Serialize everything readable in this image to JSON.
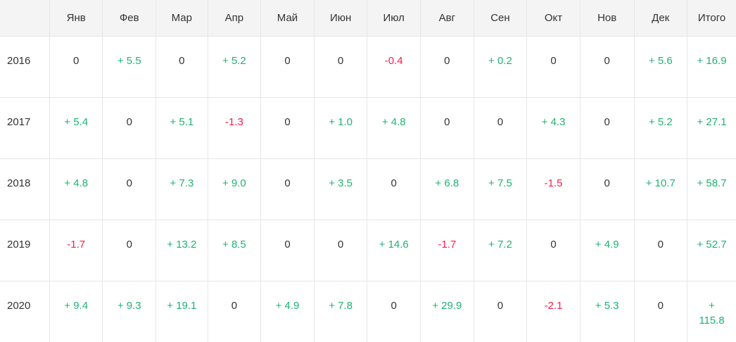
{
  "colors": {
    "positive": "#1fb371",
    "negative": "#ff1a4b",
    "neutral": "#333333",
    "header_background": "#f4f4f4",
    "grid_line": "#e6e6e6"
  },
  "table": {
    "corner": "",
    "columns": [
      "Янв",
      "Фев",
      "Мар",
      "Апр",
      "Май",
      "Июн",
      "Июл",
      "Авг",
      "Сен",
      "Окт",
      "Нов",
      "Дек",
      "Итого"
    ],
    "rows": [
      {
        "year": "2016",
        "values": [
          "0",
          "+ 5.5",
          "0",
          "+ 5.2",
          "0",
          "0",
          "-0.4",
          "0",
          "+ 0.2",
          "0",
          "0",
          "+ 5.6",
          "+ 16.9"
        ]
      },
      {
        "year": "2017",
        "values": [
          "+ 5.4",
          "0",
          "+ 5.1",
          "-1.3",
          "0",
          "+ 1.0",
          "+ 4.8",
          "0",
          "0",
          "+ 4.3",
          "0",
          "+ 5.2",
          "+ 27.1"
        ]
      },
      {
        "year": "2018",
        "values": [
          "+ 4.8",
          "0",
          "+ 7.3",
          "+ 9.0",
          "0",
          "+ 3.5",
          "0",
          "+ 6.8",
          "+ 7.5",
          "-1.5",
          "0",
          "+ 10.7",
          "+ 58.7"
        ]
      },
      {
        "year": "2019",
        "values": [
          "-1.7",
          "0",
          "+ 13.2",
          "+ 8.5",
          "0",
          "0",
          "+ 14.6",
          "-1.7",
          "+ 7.2",
          "0",
          "+ 4.9",
          "0",
          "+ 52.7"
        ]
      },
      {
        "year": "2020",
        "values": [
          "+ 9.4",
          "+ 9.3",
          "+ 19.1",
          "0",
          "+ 4.9",
          "+ 7.8",
          "0",
          "+ 29.9",
          "0",
          "-2.1",
          "+ 5.3",
          "0",
          "+ 115.8"
        ]
      }
    ]
  }
}
